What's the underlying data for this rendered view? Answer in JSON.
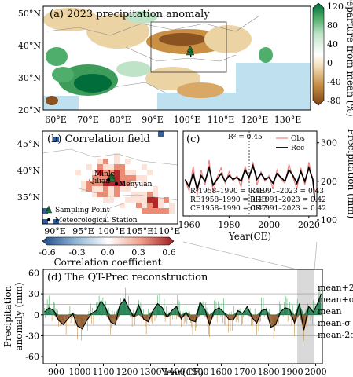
{
  "colors": {
    "wet_dark": "#006d3a",
    "wet_mid": "#4fae6b",
    "wet_light": "#bfe3c7",
    "dry_dark": "#7a4212",
    "dry_mid": "#c88f45",
    "dry_light": "#ecd3a4",
    "ocean": "#bfe0ee",
    "corr_high": "#b3262a",
    "corr_mid": "#ea8d74",
    "corr_low": "#fde3d7",
    "corr_neg": "#2f5fa0",
    "obs_line": "#f08080",
    "rec_line": "#000000",
    "highlight": "#cccccc"
  },
  "panel_a": {
    "title": "(a) 2023 precipitation anomaly",
    "lat_ticks": [
      "20°N",
      "30°N",
      "40°N",
      "50°N"
    ],
    "lon_ticks": [
      "60°E",
      "70°E",
      "80°E",
      "90°E",
      "100°E",
      "110°E",
      "120°E",
      "130°E"
    ],
    "colorbar": {
      "label": "Departure from mean (%)",
      "ticks": [
        "120",
        "80",
        "40",
        "0",
        "-40",
        "-80"
      ]
    }
  },
  "panel_b": {
    "title": "(b) Correlation field",
    "lat_ticks": [
      "35°N",
      "40°N",
      "45°N"
    ],
    "lon_ticks": [
      "90°E",
      "95°E",
      "100°E",
      "105°E",
      "110°E"
    ],
    "site_labels": [
      "Minle",
      "Qilian",
      "Menyuan"
    ],
    "legend": [
      "Sampling Point",
      "Meteorological Station"
    ],
    "colorbar": {
      "label": "Correlation coefficient",
      "ticks": [
        "-0.6",
        "-0.3",
        "0.0",
        "0.3",
        "0.6"
      ]
    }
  },
  "panel_c": {
    "label": "(c)",
    "r2": "R² = 0.45",
    "legend": [
      "Obs",
      "Rec"
    ],
    "stats_left": [
      "R²1958–1990 = 0.48",
      "RE1958–1990 = 0.48",
      "CE1958–1990 = 0.47"
    ],
    "stats_right": [
      "R²1991–2023 = 0.43",
      "RE1991–2023 = 0.42",
      "CE1991–2023 = 0.42"
    ],
    "xlabel": "Year(CE)",
    "ylabel": "Precipitation (mm)",
    "x_ticks": [
      "1960",
      "1980",
      "2000",
      "2020"
    ],
    "y_ticks": [
      "100",
      "200",
      "300"
    ]
  },
  "panel_d": {
    "title": "(d) The QT-Prec reconstruction",
    "xlabel": "Year(CE)",
    "ylabel": "Precipitation anomaly (mm)",
    "x_ticks": [
      "900",
      "1000",
      "1100",
      "1200",
      "1300",
      "1400",
      "1500",
      "1600",
      "1700",
      "1800",
      "1900",
      "2000"
    ],
    "y_ticks": [
      "60",
      "30",
      "0",
      "-30",
      "-60"
    ],
    "ref_labels": [
      "mean+2σ",
      "mean+σ",
      "mean",
      "mean-σ",
      "mean-2σ"
    ]
  },
  "chart_data": [
    {
      "type": "heatmap",
      "title": "(a) 2023 precipitation anomaly",
      "xlim": [
        55,
        138
      ],
      "ylim": [
        20,
        53
      ],
      "colorbar_label": "Departure from mean (%)",
      "colorbar_range": [
        -80,
        120
      ]
    },
    {
      "type": "heatmap",
      "title": "(b) Correlation field",
      "xlim": [
        87,
        112
      ],
      "ylim": [
        32,
        48
      ],
      "colorbar_label": "Correlation coefficient",
      "colorbar_range": [
        -0.6,
        0.6
      ]
    },
    {
      "type": "line",
      "title": "(c)",
      "xlabel": "Year(CE)",
      "ylabel": "Precipitation (mm)",
      "xlim": [
        1957,
        2024
      ],
      "ylim": [
        110,
        330
      ],
      "x": [
        1958,
        1960,
        1962,
        1964,
        1966,
        1968,
        1970,
        1972,
        1974,
        1976,
        1978,
        1980,
        1982,
        1984,
        1986,
        1988,
        1990,
        1992,
        1994,
        1996,
        1998,
        2000,
        2002,
        2004,
        2006,
        2008,
        2010,
        2012,
        2014,
        2016,
        2018,
        2020,
        2022,
        2023
      ],
      "series": [
        {
          "name": "Obs",
          "values": [
            200,
            175,
            240,
            165,
            230,
            190,
            255,
            170,
            210,
            235,
            195,
            225,
            200,
            215,
            185,
            240,
            205,
            250,
            190,
            225,
            200,
            215,
            180,
            230,
            205,
            195,
            245,
            210,
            180,
            235,
            190,
            250,
            200,
            175
          ]
        },
        {
          "name": "Rec",
          "values": [
            205,
            185,
            220,
            180,
            215,
            200,
            235,
            190,
            205,
            220,
            200,
            215,
            205,
            210,
            200,
            230,
            210,
            240,
            205,
            220,
            205,
            210,
            195,
            220,
            210,
            200,
            230,
            215,
            195,
            225,
            200,
            235,
            205,
            150
          ]
        }
      ]
    },
    {
      "type": "area",
      "title": "(d) The QT-Prec reconstruction",
      "xlabel": "Year(CE)",
      "ylabel": "Precipitation anomaly (mm)",
      "xlim": [
        845,
        2028
      ],
      "ylim": [
        -70,
        65
      ],
      "x": [
        850,
        870,
        890,
        910,
        930,
        950,
        970,
        990,
        1010,
        1030,
        1050,
        1070,
        1090,
        1110,
        1130,
        1150,
        1170,
        1190,
        1210,
        1230,
        1250,
        1270,
        1290,
        1310,
        1330,
        1350,
        1370,
        1390,
        1410,
        1430,
        1450,
        1470,
        1490,
        1510,
        1530,
        1550,
        1570,
        1590,
        1610,
        1630,
        1650,
        1670,
        1690,
        1710,
        1730,
        1750,
        1770,
        1790,
        1810,
        1830,
        1850,
        1870,
        1890,
        1910,
        1930,
        1950,
        1970,
        1990,
        2010,
        2023
      ],
      "series": [
        {
          "name": "",
          "values": [
            4,
            10,
            6,
            -8,
            -14,
            -6,
            2,
            -16,
            -20,
            -8,
            2,
            6,
            20,
            10,
            -10,
            -14,
            14,
            22,
            8,
            -4,
            14,
            -6,
            -10,
            6,
            16,
            10,
            -4,
            6,
            12,
            -6,
            4,
            -8,
            -10,
            18,
            8,
            -14,
            6,
            10,
            4,
            -6,
            -8,
            6,
            2,
            12,
            -4,
            -12,
            6,
            8,
            -18,
            -14,
            4,
            10,
            8,
            -12,
            16,
            -22,
            12,
            4,
            18,
            30
          ]
        }
      ],
      "reference_lines": {
        "mean": 0,
        "sigma": 15
      }
    }
  ]
}
